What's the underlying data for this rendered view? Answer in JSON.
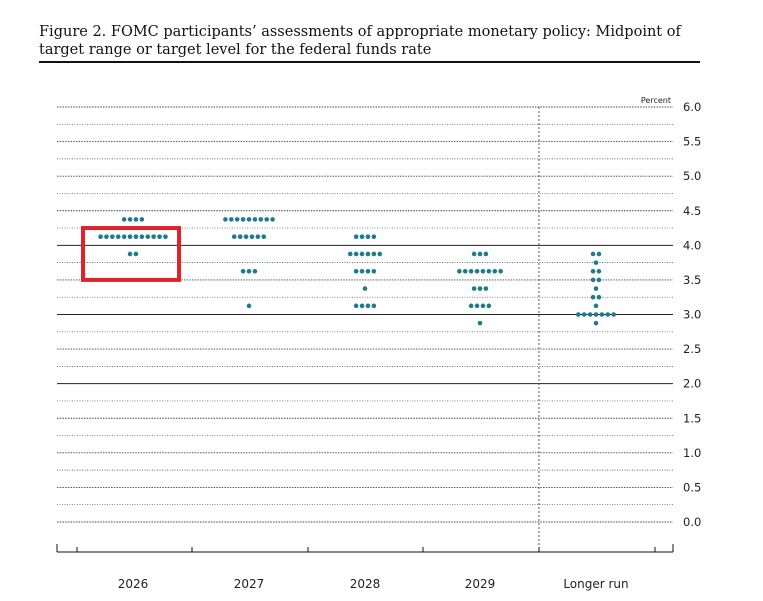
{
  "title": "Figure 2. FOMC participants’ assessments of appropriate monetary policy: Midpoint of target range or target level for the federal funds rate",
  "colors": {
    "dot": "#1f7a8c",
    "highlight_box": "#e0222b",
    "grid": "#444444",
    "major_grid": "#222222"
  },
  "chart_data": {
    "type": "scatter",
    "unit_label": "Percent",
    "ylim": [
      0.0,
      6.0
    ],
    "y_ticks": [
      "6.0",
      "5.5",
      "5.0",
      "4.5",
      "4.0",
      "3.5",
      "3.0",
      "2.5",
      "2.0",
      "1.5",
      "1.0",
      "0.5",
      "0.0"
    ],
    "categories": [
      "2026",
      "2027",
      "2028",
      "2029",
      "Longer run"
    ],
    "dots": [
      {
        "category": "2026",
        "counts": [
          {
            "y": 4.375,
            "n": 4
          },
          {
            "y": 4.125,
            "n": 12
          },
          {
            "y": 3.875,
            "n": 2
          }
        ]
      },
      {
        "category": "2027",
        "counts": [
          {
            "y": 4.375,
            "n": 9
          },
          {
            "y": 4.125,
            "n": 6
          },
          {
            "y": 3.625,
            "n": 3
          },
          {
            "y": 3.125,
            "n": 1
          }
        ]
      },
      {
        "category": "2028",
        "counts": [
          {
            "y": 4.125,
            "n": 4
          },
          {
            "y": 3.875,
            "n": 6
          },
          {
            "y": 3.625,
            "n": 4
          },
          {
            "y": 3.375,
            "n": 1
          },
          {
            "y": 3.125,
            "n": 4
          }
        ]
      },
      {
        "category": "2029",
        "counts": [
          {
            "y": 3.875,
            "n": 3
          },
          {
            "y": 3.625,
            "n": 8
          },
          {
            "y": 3.375,
            "n": 3
          },
          {
            "y": 3.125,
            "n": 4
          },
          {
            "y": 2.875,
            "n": 1
          }
        ]
      },
      {
        "category": "Longer run",
        "counts": [
          {
            "y": 3.875,
            "n": 2
          },
          {
            "y": 3.75,
            "n": 1
          },
          {
            "y": 3.625,
            "n": 2
          },
          {
            "y": 3.5,
            "n": 2
          },
          {
            "y": 3.375,
            "n": 1
          },
          {
            "y": 3.25,
            "n": 2
          },
          {
            "y": 3.125,
            "n": 1
          },
          {
            "y": 3.0,
            "n": 7
          },
          {
            "y": 2.875,
            "n": 1
          }
        ]
      }
    ],
    "highlight": {
      "category": "2026",
      "y_range": [
        3.5,
        4.25
      ]
    },
    "grid": true,
    "major_grid_values": [
      2.0,
      3.0,
      4.0
    ]
  }
}
